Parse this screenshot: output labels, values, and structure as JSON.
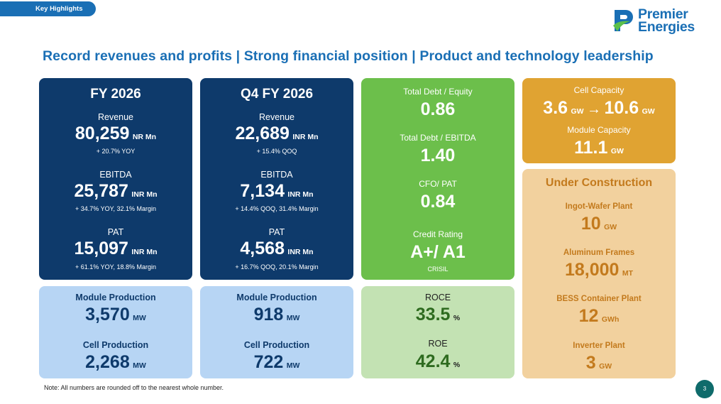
{
  "header": {
    "tab_label": "Key Highlights",
    "logo_line1": "Premier",
    "logo_line2": "Energies",
    "headline": "Record revenues and profits  |  Strong financial position  |  Product and technology leadership"
  },
  "fy_card": {
    "title": "FY 2026",
    "revenue_label": "Revenue",
    "revenue_value": "80,259",
    "revenue_unit": "NR Mn",
    "revenue_sub": "+ 20.7% YOY",
    "ebitda_label": "EBITDA",
    "ebitda_value": "25,787",
    "ebitda_unit": "INR Mn",
    "ebitda_sub": "+ 34.7% YOY, 32.1% Margin",
    "pat_label": "PAT",
    "pat_value": "15,097",
    "pat_unit": "INR Mn",
    "pat_sub": "+ 61.1% YOY, 18.8% Margin"
  },
  "q4_card": {
    "title": "Q4 FY 2026",
    "revenue_label": "Revenue",
    "revenue_value": "22,689",
    "revenue_unit": "INR Mn",
    "revenue_sub": "+ 15.4% QOQ",
    "ebitda_label": "EBITDA",
    "ebitda_value": "7,134",
    "ebitda_unit": "INR Mn",
    "ebitda_sub": "+ 14.4% QOQ, 31.4% Margin",
    "pat_label": "PAT",
    "pat_value": "4,568",
    "pat_unit": "INR Mn",
    "pat_sub": "+ 16.7% QOQ, 20.1% Margin"
  },
  "fy_production": {
    "module_label": "Module Production",
    "module_value": "3,570",
    "module_unit": "MW",
    "cell_label": "Cell Production",
    "cell_value": "2,268",
    "cell_unit": "MW"
  },
  "q4_production": {
    "module_label": "Module Production",
    "module_value": "918",
    "module_unit": "MW",
    "cell_label": "Cell Production",
    "cell_value": "722",
    "cell_unit": "MW"
  },
  "financial_position": {
    "debt_equity_label": "Total Debt / Equity",
    "debt_equity_value": "0.86",
    "debt_ebitda_label": "Total Debt / EBITDA",
    "debt_ebitda_value": "1.40",
    "cfo_pat_label": "CFO/ PAT",
    "cfo_pat_value": "0.84",
    "credit_label": "Credit Rating",
    "credit_value": "A+/ A1",
    "credit_agency": "CRISIL"
  },
  "returns": {
    "roce_label": "ROCE",
    "roce_value": "33.5",
    "roce_unit": "%",
    "roe_label": "ROE",
    "roe_value": "42.4",
    "roe_unit": "%"
  },
  "capacity": {
    "cell_label": "Cell Capacity",
    "cell_from": "3.6",
    "cell_from_unit": "GW",
    "cell_arrow": "→",
    "cell_to": "10.6",
    "cell_to_unit": "GW",
    "module_label": "Module Capacity",
    "module_value": "11.1",
    "module_unit": "GW"
  },
  "under_construction": {
    "title": "Under Construction",
    "items": [
      {
        "label": "Ingot-Wafer Plant",
        "value": "10",
        "unit": "GW"
      },
      {
        "label": "Aluminum Frames",
        "value": "18,000",
        "unit": "MT"
      },
      {
        "label": "BESS Container Plant",
        "value": "12",
        "unit": "GWh"
      },
      {
        "label": "Inverter Plant",
        "value": "3",
        "unit": "GW"
      }
    ]
  },
  "footer": {
    "note": "Note: All numbers are rounded off to the nearest whole number.",
    "page_number": "3"
  },
  "colors": {
    "brand_blue": "#1a6fb5",
    "navy": "#0e3a6b",
    "green": "#6cbf4b",
    "orange": "#e0a332",
    "logo_green": "#5bbf4a"
  }
}
